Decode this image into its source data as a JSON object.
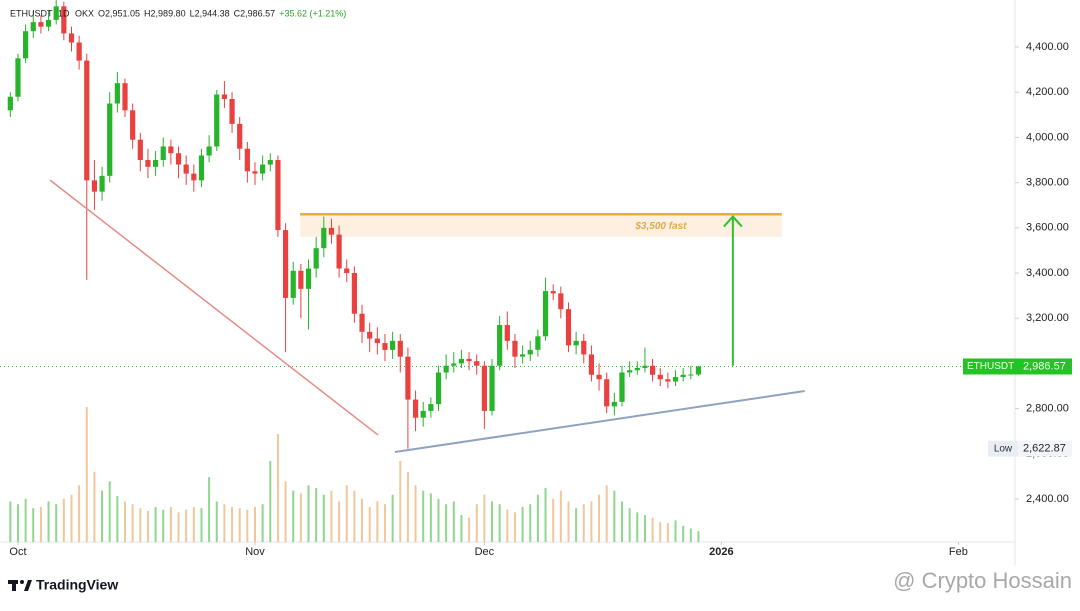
{
  "chart_data": {
    "type": "candlestick",
    "legend_header": {
      "symbol": "ETHUSDT",
      "interval": "1D",
      "exchange": "OKX",
      "ohlc_labels": [
        "O2,951.05",
        "H2,989.80",
        "L2,944.38",
        "C2,986.57"
      ],
      "change": "+35.62 (+1.21%)"
    },
    "x": [
      -1,
      0,
      1,
      2,
      3,
      4,
      5,
      6,
      7,
      8,
      9,
      10,
      11,
      12,
      13,
      14,
      15,
      16,
      17,
      18,
      19,
      20,
      21,
      22,
      23,
      24,
      25,
      26,
      27,
      28,
      29,
      30,
      31,
      32,
      33,
      34,
      35,
      36,
      37,
      38,
      39,
      40,
      41,
      42,
      43,
      44,
      45,
      46,
      47,
      48,
      49,
      50,
      51,
      52,
      53,
      54,
      55,
      56,
      57,
      58,
      59,
      60,
      61,
      62,
      63,
      64,
      65,
      66,
      67,
      68,
      69,
      70,
      71,
      72,
      73,
      74,
      75,
      76,
      77,
      78,
      79,
      80,
      81,
      82,
      83,
      84,
      85,
      86,
      87,
      88,
      89
    ],
    "open": [
      4120,
      4180,
      4350,
      4470,
      4510,
      4490,
      4520,
      4580,
      4460,
      4420,
      4340,
      3810,
      3760,
      3830,
      4150,
      4240,
      4120,
      3990,
      3900,
      3870,
      3900,
      3960,
      3930,
      3880,
      3840,
      3810,
      3920,
      3960,
      4190,
      4170,
      4060,
      3950,
      3850,
      3840,
      3880,
      3900,
      3590,
      3290,
      3410,
      3330,
      3420,
      3510,
      3600,
      3570,
      3420,
      3400,
      3220,
      3140,
      3110,
      3090,
      3060,
      3100,
      3030,
      2840,
      2760,
      2790,
      2820,
      2960,
      2990,
      3000,
      3020,
      3010,
      2990,
      2790,
      2990,
      3170,
      3100,
      3030,
      3040,
      3060,
      3120,
      3320,
      3310,
      3240,
      3080,
      3100,
      3040,
      2950,
      2930,
      2810,
      2830,
      2960,
      2970,
      2980,
      2990,
      2950,
      2930,
      2920,
      2940,
      2950,
      2951.05
    ],
    "high": [
      4200,
      4370,
      4500,
      4560,
      4540,
      4560,
      4640,
      4600,
      4490,
      4450,
      4370,
      3900,
      3870,
      4200,
      4290,
      4260,
      4150,
      4020,
      3950,
      3940,
      4000,
      3990,
      3960,
      3920,
      3880,
      3950,
      4010,
      4210,
      4250,
      4200,
      4090,
      3980,
      3890,
      3920,
      3930,
      3920,
      3620,
      3450,
      3440,
      3460,
      3560,
      3650,
      3640,
      3610,
      3460,
      3430,
      3260,
      3180,
      3160,
      3130,
      3140,
      3130,
      3070,
      2880,
      2830,
      2850,
      2990,
      3040,
      3050,
      3060,
      3050,
      3040,
      3010,
      3020,
      3210,
      3230,
      3130,
      3080,
      3100,
      3150,
      3380,
      3350,
      3340,
      3270,
      3140,
      3130,
      3080,
      3000,
      2960,
      2870,
      2990,
      3010,
      3010,
      3070,
      3020,
      2980,
      2960,
      2970,
      2980,
      2990,
      2989.8
    ],
    "low": [
      4090,
      4160,
      4330,
      4440,
      4460,
      4470,
      4500,
      4430,
      4380,
      4300,
      3370,
      3680,
      3720,
      3800,
      4110,
      4090,
      3950,
      3850,
      3820,
      3830,
      3870,
      3880,
      3820,
      3790,
      3760,
      3780,
      3890,
      3940,
      4130,
      4020,
      3900,
      3800,
      3790,
      3810,
      3850,
      3560,
      3050,
      3260,
      3200,
      3150,
      3380,
      3470,
      3530,
      3380,
      3360,
      3180,
      3090,
      3050,
      3040,
      3010,
      3020,
      2960,
      2622.87,
      2700,
      2720,
      2760,
      2790,
      2930,
      2960,
      2980,
      2970,
      2950,
      2710,
      2770,
      2970,
      3060,
      2980,
      3000,
      3010,
      3030,
      3100,
      3280,
      3200,
      3050,
      3040,
      3000,
      2920,
      2880,
      2780,
      2770,
      2810,
      2940,
      2950,
      2960,
      2920,
      2900,
      2890,
      2900,
      2920,
      2930,
      2944.38
    ],
    "close": [
      4180,
      4350,
      4470,
      4510,
      4490,
      4520,
      4580,
      4460,
      4420,
      4340,
      3810,
      3760,
      3830,
      4150,
      4240,
      4120,
      3990,
      3900,
      3870,
      3900,
      3960,
      3930,
      3880,
      3840,
      3810,
      3920,
      3960,
      4190,
      4170,
      4060,
      3950,
      3850,
      3840,
      3880,
      3900,
      3590,
      3290,
      3410,
      3330,
      3420,
      3510,
      3600,
      3570,
      3420,
      3400,
      3220,
      3140,
      3110,
      3090,
      3060,
      3100,
      3030,
      2840,
      2760,
      2790,
      2820,
      2960,
      2990,
      3000,
      3020,
      3010,
      2990,
      2790,
      2990,
      3170,
      3100,
      3030,
      3040,
      3060,
      3120,
      3320,
      3310,
      3240,
      3080,
      3100,
      3040,
      2950,
      2930,
      2810,
      2830,
      2960,
      2970,
      2980,
      2990,
      2950,
      2930,
      2920,
      2940,
      2950,
      2951.05,
      2986.57
    ],
    "volume": [
      300,
      280,
      320,
      250,
      260,
      300,
      280,
      320,
      350,
      420,
      1000,
      520,
      380,
      450,
      340,
      300,
      280,
      250,
      230,
      260,
      240,
      260,
      220,
      240,
      260,
      250,
      480,
      300,
      280,
      260,
      250,
      240,
      260,
      280,
      600,
      800,
      450,
      380,
      360,
      420,
      400,
      350,
      380,
      300,
      420,
      380,
      320,
      260,
      300,
      280,
      350,
      600,
      520,
      420,
      380,
      360,
      320,
      280,
      300,
      200,
      180,
      280,
      350,
      300,
      280,
      240,
      220,
      260,
      280,
      350,
      400,
      320,
      380,
      300,
      250,
      280,
      300,
      350,
      420,
      380,
      300,
      250,
      220,
      200,
      180,
      150,
      140,
      160,
      120,
      100,
      80
    ],
    "volume_lim": [
      0,
      1000
    ],
    "up_color": "#26b52a",
    "down_color": "#e8413f",
    "up_volume_color": "#8fd68f",
    "down_volume_color": "#f0c79a",
    "xlim": [
      -2.35,
      130.4
    ],
    "xticks": [
      {
        "value": 0,
        "label": "Oct"
      },
      {
        "value": 31,
        "label": "Nov"
      },
      {
        "value": 61,
        "label": "Dec"
      },
      {
        "value": 92,
        "label": "2026",
        "bold": true
      },
      {
        "value": 123,
        "label": "Feb"
      }
    ],
    "ylim": [
      2210,
      4608
    ],
    "yticks": [
      {
        "value": 2400,
        "label": "2,400.00"
      },
      {
        "value": 2600,
        "label": "2,600.00"
      },
      {
        "value": 2800,
        "label": "2,800.00"
      },
      {
        "value": 3000,
        "label": "3,000.00"
      },
      {
        "value": 3200,
        "label": "3,200.00"
      },
      {
        "value": 3400,
        "label": "3,400.00"
      },
      {
        "value": 3600,
        "label": "3,600.00"
      },
      {
        "value": 3800,
        "label": "3,800.00"
      },
      {
        "value": 4000,
        "label": "4,000.00"
      },
      {
        "value": 4200,
        "label": "4,200.00"
      },
      {
        "value": 4400,
        "label": "4,400.00"
      }
    ],
    "grid": false,
    "last_price": {
      "name": "ETHUSDT",
      "value": 2986.57,
      "label": "2,986.57",
      "color": "#22c322"
    },
    "low_marker": {
      "name": "Low",
      "value": 2622.87,
      "label": "2,622.87"
    },
    "zone": {
      "x": [
        36.9,
        99.9
      ],
      "y": [
        3560,
        3655
      ],
      "color": "#fde9d4",
      "label": "$3,500 fast"
    },
    "resistance": {
      "x": [
        36.9,
        99.9
      ],
      "y": [
        3660,
        3660
      ],
      "color": "#e2b13c"
    },
    "downtrend": {
      "x": [
        4.2,
        47.1
      ],
      "y": [
        3811,
        2683
      ],
      "color": "#e88a86"
    },
    "uptrend": {
      "x": [
        49.3,
        102.9
      ],
      "y": [
        2608,
        2878
      ],
      "color": "#8fa3c0"
    },
    "arrow": {
      "x": [
        93.5,
        93.5
      ],
      "y": [
        2990,
        3650
      ],
      "color": "#2ec02e"
    },
    "logo": "TradingView",
    "watermark": "@ Crypto Hossain"
  }
}
